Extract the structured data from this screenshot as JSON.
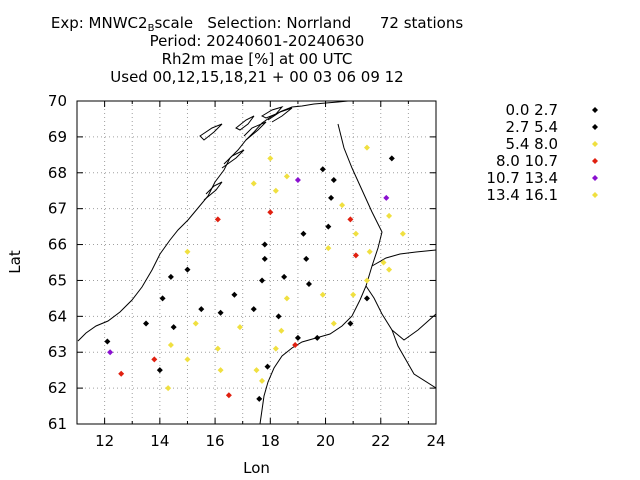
{
  "header": {
    "exp_prefix": "Exp: MNWC2",
    "exp_sub": "B",
    "exp_suffix": "scale",
    "selection": "Selection: Norrland",
    "stations": "72 stations",
    "period": "Period: 20240601-20240630",
    "variable": "Rh2m mae [%] at  00 UTC",
    "used": "Used 00,12,15,18,21 + 00 03 06 09 12"
  },
  "colors": {
    "black": "#000000",
    "yellow": "#f0e040",
    "red": "#e02010",
    "purple": "#8a10d0",
    "axis": "#000000",
    "grid": "#a0a0a0"
  },
  "chart_data": {
    "type": "scatter",
    "xlabel": "Lon",
    "ylabel": "Lat",
    "xlim": [
      11,
      24
    ],
    "ylim": [
      61,
      70
    ],
    "xticks": [
      12,
      14,
      16,
      18,
      20,
      22,
      24
    ],
    "yticks": [
      61,
      62,
      63,
      64,
      65,
      66,
      67,
      68,
      69,
      70
    ],
    "grid": true,
    "legend_position": "right",
    "series": [
      {
        "name": "0.0 2.7",
        "color": "#000000",
        "points": [
          [
            22.4,
            68.4
          ],
          [
            19.9,
            68.1
          ],
          [
            20.3,
            67.8
          ],
          [
            20.2,
            67.3
          ],
          [
            20.1,
            66.5
          ],
          [
            19.2,
            66.3
          ],
          [
            17.8,
            66.0
          ],
          [
            17.8,
            65.6
          ],
          [
            19.3,
            65.6
          ],
          [
            18.5,
            65.1
          ],
          [
            17.7,
            65.0
          ],
          [
            19.4,
            64.9
          ],
          [
            15.0,
            65.3
          ],
          [
            14.4,
            65.1
          ],
          [
            14.1,
            64.5
          ],
          [
            16.7,
            64.6
          ],
          [
            15.5,
            64.2
          ],
          [
            16.2,
            64.1
          ],
          [
            17.4,
            64.2
          ],
          [
            18.3,
            64.0
          ],
          [
            13.5,
            63.8
          ],
          [
            14.5,
            63.7
          ],
          [
            21.5,
            64.5
          ],
          [
            20.9,
            63.8
          ],
          [
            19.0,
            63.4
          ],
          [
            19.7,
            63.4
          ],
          [
            12.1,
            63.3
          ],
          [
            14.0,
            62.5
          ],
          [
            17.9,
            62.6
          ],
          [
            17.6,
            61.7
          ]
        ]
      },
      {
        "name": "2.7 5.4",
        "color": "#000000",
        "points": []
      },
      {
        "name": "5.4 8.0",
        "color": "#f0e040",
        "points": [
          [
            21.5,
            68.7
          ],
          [
            18.0,
            68.4
          ],
          [
            18.6,
            67.9
          ],
          [
            17.4,
            67.7
          ],
          [
            18.2,
            67.5
          ],
          [
            20.6,
            67.1
          ],
          [
            22.3,
            66.8
          ],
          [
            22.8,
            66.3
          ],
          [
            21.1,
            66.3
          ],
          [
            21.6,
            65.8
          ],
          [
            20.1,
            65.9
          ],
          [
            22.1,
            65.5
          ],
          [
            22.3,
            65.3
          ],
          [
            21.5,
            65.0
          ],
          [
            15.0,
            65.8
          ],
          [
            18.6,
            64.5
          ],
          [
            19.9,
            64.6
          ],
          [
            21.0,
            64.6
          ],
          [
            15.3,
            63.8
          ],
          [
            16.9,
            63.7
          ],
          [
            18.4,
            63.6
          ],
          [
            20.3,
            63.8
          ],
          [
            14.4,
            63.2
          ],
          [
            16.1,
            63.1
          ],
          [
            18.2,
            63.1
          ],
          [
            15.0,
            62.8
          ],
          [
            16.2,
            62.5
          ],
          [
            17.5,
            62.5
          ],
          [
            17.7,
            62.2
          ],
          [
            14.3,
            62.0
          ]
        ]
      },
      {
        "name": "8.0 10.7",
        "color": "#e02010",
        "points": [
          [
            16.1,
            66.7
          ],
          [
            18.0,
            66.9
          ],
          [
            20.9,
            66.7
          ],
          [
            21.1,
            65.7
          ],
          [
            18.9,
            63.2
          ],
          [
            13.8,
            62.8
          ],
          [
            12.6,
            62.4
          ],
          [
            16.5,
            61.8
          ]
        ]
      },
      {
        "name": "10.7 13.4",
        "color": "#8a10d0",
        "points": [
          [
            19.0,
            67.8
          ],
          [
            22.2,
            67.3
          ],
          [
            12.2,
            63.0
          ]
        ]
      },
      {
        "name": "13.4 16.1",
        "color": "#f0e040",
        "points": []
      }
    ]
  }
}
